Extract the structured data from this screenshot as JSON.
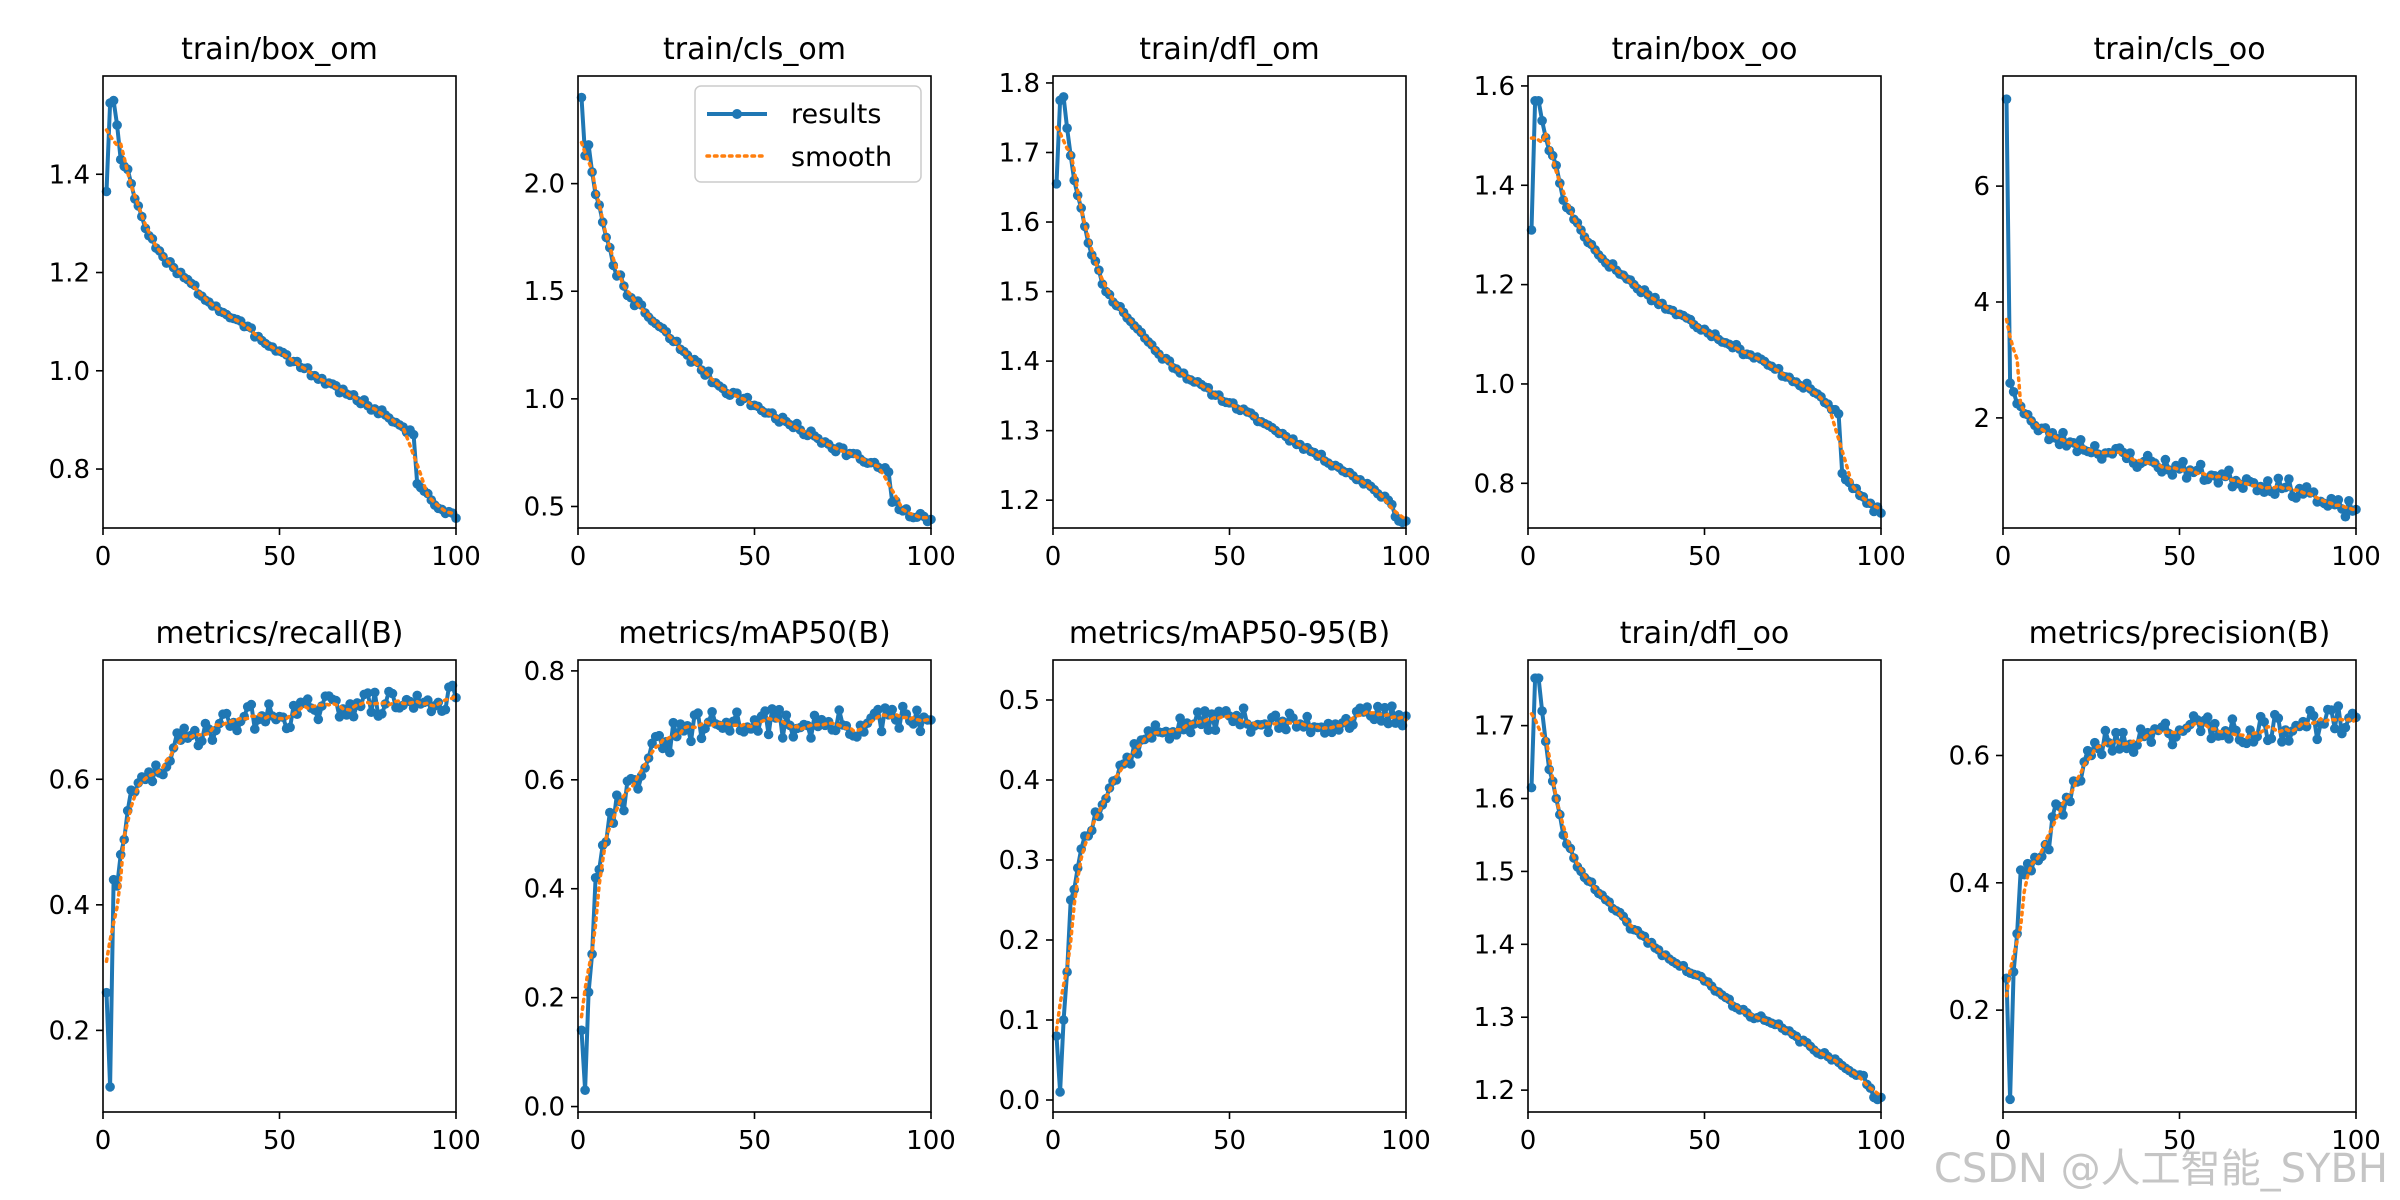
{
  "colors": {
    "results": "#1f77b4",
    "smooth": "#ff7f0e",
    "axis": "#000000"
  },
  "legend": {
    "labels": [
      "results",
      "smooth"
    ],
    "placement": "top-right",
    "panel": 1
  },
  "watermark": "CSDN @人工智能_SYBH",
  "chart_data": [
    {
      "type": "line",
      "title": "train/box_om",
      "xlim": [
        0,
        100
      ],
      "ylim": [
        0.68,
        1.6
      ],
      "xticks": [
        0,
        50,
        100
      ],
      "yticks": [
        0.8,
        1.0,
        1.2,
        1.4
      ],
      "ytick_decimals": 1,
      "keypoints": [
        [
          1,
          1.365
        ],
        [
          2,
          1.545
        ],
        [
          3,
          1.55
        ],
        [
          4,
          1.5
        ],
        [
          5,
          1.43
        ],
        [
          7,
          1.41
        ],
        [
          9,
          1.35
        ],
        [
          12,
          1.29
        ],
        [
          15,
          1.25
        ],
        [
          20,
          1.21
        ],
        [
          30,
          1.14
        ],
        [
          40,
          1.09
        ],
        [
          50,
          1.04
        ],
        [
          60,
          0.99
        ],
        [
          70,
          0.95
        ],
        [
          80,
          0.91
        ],
        [
          88,
          0.87
        ],
        [
          89,
          0.77
        ],
        [
          92,
          0.75
        ],
        [
          95,
          0.72
        ],
        [
          100,
          0.7
        ]
      ],
      "noise": 0.008,
      "seed": 3,
      "series": [
        {
          "name": "results"
        },
        {
          "name": "smooth"
        }
      ]
    },
    {
      "type": "line",
      "title": "train/cls_om",
      "xlim": [
        0,
        100
      ],
      "ylim": [
        0.4,
        2.5
      ],
      "xticks": [
        0,
        50,
        100
      ],
      "yticks": [
        0.5,
        1.0,
        1.5,
        2.0
      ],
      "ytick_decimals": 1,
      "keypoints": [
        [
          1,
          2.4
        ],
        [
          2,
          2.13
        ],
        [
          3,
          2.18
        ],
        [
          5,
          1.95
        ],
        [
          8,
          1.75
        ],
        [
          10,
          1.62
        ],
        [
          15,
          1.47
        ],
        [
          20,
          1.38
        ],
        [
          30,
          1.22
        ],
        [
          40,
          1.06
        ],
        [
          50,
          0.97
        ],
        [
          60,
          0.88
        ],
        [
          70,
          0.8
        ],
        [
          80,
          0.72
        ],
        [
          88,
          0.66
        ],
        [
          89,
          0.52
        ],
        [
          92,
          0.48
        ],
        [
          96,
          0.45
        ],
        [
          100,
          0.44
        ]
      ],
      "noise": 0.01,
      "seed": 7,
      "series": [
        {
          "name": "results"
        },
        {
          "name": "smooth"
        }
      ]
    },
    {
      "type": "line",
      "title": "train/dfl_om",
      "xlim": [
        0,
        100
      ],
      "ylim": [
        1.16,
        1.81
      ],
      "xticks": [
        0,
        50,
        100
      ],
      "yticks": [
        1.2,
        1.3,
        1.4,
        1.5,
        1.6,
        1.7,
        1.8
      ],
      "ytick_decimals": 1,
      "keypoints": [
        [
          1,
          1.655
        ],
        [
          2,
          1.775
        ],
        [
          3,
          1.78
        ],
        [
          4,
          1.735
        ],
        [
          6,
          1.66
        ],
        [
          8,
          1.62
        ],
        [
          10,
          1.57
        ],
        [
          15,
          1.5
        ],
        [
          20,
          1.47
        ],
        [
          30,
          1.41
        ],
        [
          40,
          1.37
        ],
        [
          50,
          1.34
        ],
        [
          60,
          1.31
        ],
        [
          70,
          1.28
        ],
        [
          80,
          1.25
        ],
        [
          90,
          1.22
        ],
        [
          95,
          1.2
        ],
        [
          98,
          1.17
        ],
        [
          100,
          1.17
        ]
      ],
      "noise": 0.006,
      "seed": 11,
      "series": [
        {
          "name": "results"
        },
        {
          "name": "smooth"
        }
      ]
    },
    {
      "type": "line",
      "title": "train/box_oo",
      "xlim": [
        0,
        100
      ],
      "ylim": [
        0.71,
        1.62
      ],
      "xticks": [
        0,
        50,
        100
      ],
      "yticks": [
        0.8,
        1.0,
        1.2,
        1.4,
        1.6
      ],
      "ytick_decimals": 1,
      "keypoints": [
        [
          1,
          1.31
        ],
        [
          2,
          1.57
        ],
        [
          3,
          1.57
        ],
        [
          4,
          1.53
        ],
        [
          6,
          1.47
        ],
        [
          8,
          1.44
        ],
        [
          10,
          1.37
        ],
        [
          15,
          1.31
        ],
        [
          20,
          1.26
        ],
        [
          30,
          1.2
        ],
        [
          40,
          1.15
        ],
        [
          50,
          1.11
        ],
        [
          60,
          1.07
        ],
        [
          70,
          1.03
        ],
        [
          80,
          0.99
        ],
        [
          88,
          0.94
        ],
        [
          89,
          0.82
        ],
        [
          92,
          0.79
        ],
        [
          96,
          0.76
        ],
        [
          100,
          0.74
        ]
      ],
      "noise": 0.008,
      "seed": 17,
      "series": [
        {
          "name": "results"
        },
        {
          "name": "smooth"
        }
      ]
    },
    {
      "type": "line",
      "title": "train/cls_oo",
      "xlim": [
        0,
        100
      ],
      "ylim": [
        0.1,
        7.9
      ],
      "xticks": [
        0,
        50,
        100
      ],
      "yticks": [
        2,
        4,
        6
      ],
      "ytick_decimals": 0,
      "keypoints": [
        [
          1,
          7.5
        ],
        [
          2,
          2.6
        ],
        [
          3,
          2.45
        ],
        [
          5,
          2.2
        ],
        [
          8,
          1.95
        ],
        [
          10,
          1.78
        ],
        [
          15,
          1.65
        ],
        [
          20,
          1.57
        ],
        [
          30,
          1.4
        ],
        [
          40,
          1.25
        ],
        [
          50,
          1.12
        ],
        [
          60,
          1.0
        ],
        [
          70,
          0.9
        ],
        [
          80,
          0.8
        ],
        [
          88,
          0.72
        ],
        [
          89,
          0.55
        ],
        [
          92,
          0.48
        ],
        [
          96,
          0.43
        ],
        [
          100,
          0.42
        ]
      ],
      "noise": 0.02,
      "seed": 23,
      "series": [
        {
          "name": "results"
        },
        {
          "name": "smooth"
        }
      ]
    },
    {
      "type": "line",
      "title": "metrics/recall(B)",
      "xlim": [
        0,
        100
      ],
      "ylim": [
        0.07,
        0.79
      ],
      "xticks": [
        0,
        50,
        100
      ],
      "yticks": [
        0.2,
        0.4,
        0.6
      ],
      "ytick_decimals": 1,
      "keypoints": [
        [
          1,
          0.26
        ],
        [
          2,
          0.11
        ],
        [
          3,
          0.44
        ],
        [
          4,
          0.43
        ],
        [
          5,
          0.48
        ],
        [
          7,
          0.55
        ],
        [
          9,
          0.58
        ],
        [
          12,
          0.6
        ],
        [
          16,
          0.61
        ],
        [
          20,
          0.65
        ],
        [
          25,
          0.67
        ],
        [
          30,
          0.68
        ],
        [
          40,
          0.7
        ],
        [
          50,
          0.7
        ],
        [
          60,
          0.71
        ],
        [
          70,
          0.72
        ],
        [
          80,
          0.72
        ],
        [
          90,
          0.72
        ],
        [
          100,
          0.73
        ]
      ],
      "noise": 0.03,
      "seed": 29,
      "series": [
        {
          "name": "results"
        },
        {
          "name": "smooth"
        }
      ]
    },
    {
      "type": "line",
      "title": "metrics/mAP50(B)",
      "xlim": [
        0,
        100
      ],
      "ylim": [
        -0.01,
        0.82
      ],
      "xticks": [
        0,
        50,
        100
      ],
      "yticks": [
        0.0,
        0.2,
        0.4,
        0.6,
        0.8
      ],
      "ytick_decimals": 1,
      "keypoints": [
        [
          1,
          0.14
        ],
        [
          2,
          0.03
        ],
        [
          3,
          0.21
        ],
        [
          4,
          0.28
        ],
        [
          5,
          0.42
        ],
        [
          7,
          0.48
        ],
        [
          9,
          0.54
        ],
        [
          12,
          0.56
        ],
        [
          16,
          0.6
        ],
        [
          20,
          0.64
        ],
        [
          25,
          0.67
        ],
        [
          30,
          0.69
        ],
        [
          40,
          0.7
        ],
        [
          50,
          0.71
        ],
        [
          60,
          0.7
        ],
        [
          70,
          0.7
        ],
        [
          80,
          0.7
        ],
        [
          90,
          0.71
        ],
        [
          100,
          0.71
        ]
      ],
      "noise": 0.035,
      "seed": 31,
      "series": [
        {
          "name": "results"
        },
        {
          "name": "smooth"
        }
      ]
    },
    {
      "type": "line",
      "title": "metrics/mAP50-95(B)",
      "xlim": [
        0,
        100
      ],
      "ylim": [
        -0.015,
        0.55
      ],
      "xticks": [
        0,
        50,
        100
      ],
      "yticks": [
        0.0,
        0.1,
        0.2,
        0.3,
        0.4,
        0.5
      ],
      "ytick_decimals": 1,
      "keypoints": [
        [
          1,
          0.08
        ],
        [
          2,
          0.01
        ],
        [
          3,
          0.1
        ],
        [
          4,
          0.16
        ],
        [
          5,
          0.25
        ],
        [
          7,
          0.29
        ],
        [
          9,
          0.33
        ],
        [
          12,
          0.36
        ],
        [
          16,
          0.39
        ],
        [
          20,
          0.42
        ],
        [
          25,
          0.45
        ],
        [
          30,
          0.46
        ],
        [
          40,
          0.47
        ],
        [
          50,
          0.48
        ],
        [
          60,
          0.47
        ],
        [
          70,
          0.47
        ],
        [
          80,
          0.47
        ],
        [
          90,
          0.48
        ],
        [
          100,
          0.48
        ]
      ],
      "noise": 0.025,
      "seed": 37,
      "series": [
        {
          "name": "results"
        },
        {
          "name": "smooth"
        }
      ]
    },
    {
      "type": "line",
      "title": "train/dfl_oo",
      "xlim": [
        0,
        100
      ],
      "ylim": [
        1.17,
        1.79
      ],
      "xticks": [
        0,
        50,
        100
      ],
      "yticks": [
        1.2,
        1.3,
        1.4,
        1.5,
        1.6,
        1.7
      ],
      "ytick_decimals": 1,
      "keypoints": [
        [
          1,
          1.615
        ],
        [
          2,
          1.765
        ],
        [
          3,
          1.765
        ],
        [
          4,
          1.72
        ],
        [
          6,
          1.64
        ],
        [
          8,
          1.6
        ],
        [
          10,
          1.55
        ],
        [
          15,
          1.5
        ],
        [
          20,
          1.47
        ],
        [
          30,
          1.42
        ],
        [
          40,
          1.38
        ],
        [
          50,
          1.35
        ],
        [
          60,
          1.31
        ],
        [
          70,
          1.29
        ],
        [
          80,
          1.26
        ],
        [
          90,
          1.23
        ],
        [
          95,
          1.22
        ],
        [
          98,
          1.19
        ],
        [
          100,
          1.19
        ]
      ],
      "noise": 0.006,
      "seed": 41,
      "series": [
        {
          "name": "results"
        },
        {
          "name": "smooth"
        }
      ]
    },
    {
      "type": "line",
      "title": "metrics/precision(B)",
      "xlim": [
        0,
        100
      ],
      "ylim": [
        0.04,
        0.75
      ],
      "xticks": [
        0,
        50,
        100
      ],
      "yticks": [
        0.2,
        0.4,
        0.6
      ],
      "ytick_decimals": 1,
      "keypoints": [
        [
          1,
          0.25
        ],
        [
          2,
          0.06
        ],
        [
          3,
          0.26
        ],
        [
          4,
          0.32
        ],
        [
          5,
          0.42
        ],
        [
          7,
          0.43
        ],
        [
          9,
          0.44
        ],
        [
          12,
          0.46
        ],
        [
          16,
          0.52
        ],
        [
          20,
          0.56
        ],
        [
          25,
          0.6
        ],
        [
          30,
          0.62
        ],
        [
          40,
          0.63
        ],
        [
          50,
          0.64
        ],
        [
          60,
          0.65
        ],
        [
          70,
          0.64
        ],
        [
          80,
          0.64
        ],
        [
          90,
          0.65
        ],
        [
          100,
          0.66
        ]
      ],
      "noise": 0.035,
      "seed": 43,
      "series": [
        {
          "name": "results"
        },
        {
          "name": "smooth"
        }
      ]
    }
  ]
}
